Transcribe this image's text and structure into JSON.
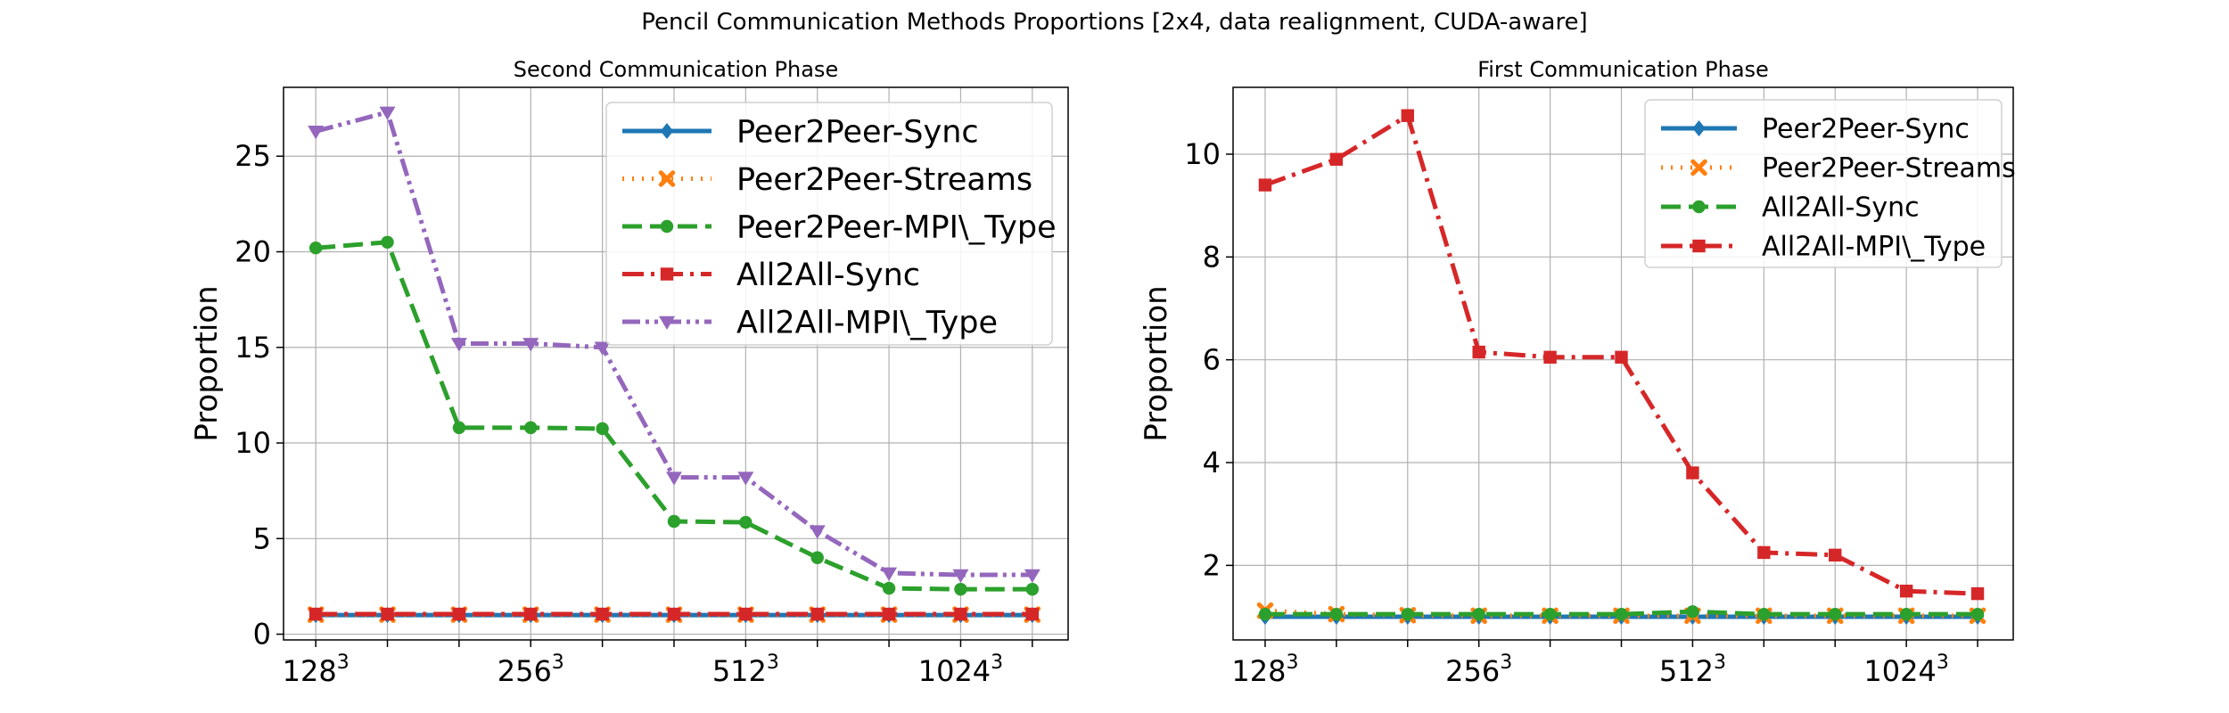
{
  "figure_title": "Pencil Communication Methods Proportions [2x4, data realignment, CUDA-aware]",
  "chart_data": [
    {
      "type": "line",
      "title": "Second Communication Phase",
      "xlabel": "",
      "ylabel": "Proportion",
      "x": [
        1,
        2,
        3,
        4,
        5,
        6,
        7,
        8,
        9,
        10,
        11
      ],
      "xticks": [
        {
          "x": 1,
          "base": "128",
          "exp": "3"
        },
        {
          "x": 4,
          "base": "256",
          "exp": "3"
        },
        {
          "x": 7,
          "base": "512",
          "exp": "3"
        },
        {
          "x": 10,
          "base": "1024",
          "exp": "3"
        }
      ],
      "yticks": [
        0,
        5,
        10,
        15,
        20,
        25
      ],
      "ylim": [
        -0.3,
        28.6
      ],
      "grid": true,
      "legend_position": "top-right",
      "series": [
        {
          "name": "Peer2Peer-Sync",
          "color": "#1f77b4",
          "dash": "solid",
          "marker": "diamond",
          "values": [
            1.0,
            1.0,
            1.0,
            1.0,
            1.0,
            1.0,
            1.0,
            1.0,
            1.0,
            1.0,
            1.0
          ]
        },
        {
          "name": "Peer2Peer-Streams",
          "color": "#ff7f0e",
          "dash": "dotted",
          "marker": "x",
          "values": [
            1.02,
            1.02,
            1.02,
            1.02,
            1.02,
            1.02,
            1.02,
            1.02,
            1.02,
            1.02,
            1.02
          ]
        },
        {
          "name": "Peer2Peer-MPI\\_Type",
          "color": "#2ca02c",
          "dash": "dashed",
          "marker": "circle",
          "values": [
            20.2,
            20.5,
            10.8,
            10.8,
            10.75,
            5.9,
            5.85,
            4.0,
            2.4,
            2.35,
            2.35
          ]
        },
        {
          "name": "All2All-Sync",
          "color": "#d62728",
          "dash": "dashdot",
          "marker": "square",
          "values": [
            1.05,
            1.05,
            1.05,
            1.05,
            1.05,
            1.05,
            1.05,
            1.05,
            1.05,
            1.05,
            1.05
          ]
        },
        {
          "name": "All2All-MPI\\_Type",
          "color": "#9467bd",
          "dash": "dashdotdot",
          "marker": "triangle-down",
          "values": [
            26.3,
            27.3,
            15.2,
            15.2,
            15.0,
            8.2,
            8.2,
            5.4,
            3.2,
            3.1,
            3.1
          ]
        }
      ]
    },
    {
      "type": "line",
      "title": "First Communication Phase",
      "xlabel": "",
      "ylabel": "Proportion",
      "x": [
        1,
        2,
        3,
        4,
        5,
        6,
        7,
        8,
        9,
        10,
        11
      ],
      "xticks": [
        {
          "x": 1,
          "base": "128",
          "exp": "3"
        },
        {
          "x": 4,
          "base": "256",
          "exp": "3"
        },
        {
          "x": 7,
          "base": "512",
          "exp": "3"
        },
        {
          "x": 10,
          "base": "1024",
          "exp": "3"
        }
      ],
      "yticks": [
        2,
        4,
        6,
        8,
        10
      ],
      "ylim": [
        0.55,
        11.3
      ],
      "grid": true,
      "legend_position": "top-right",
      "series": [
        {
          "name": "Peer2Peer-Sync",
          "color": "#1f77b4",
          "dash": "solid",
          "marker": "diamond",
          "values": [
            1.0,
            1.0,
            1.0,
            1.0,
            1.0,
            1.0,
            1.0,
            1.0,
            1.0,
            1.0,
            1.0
          ]
        },
        {
          "name": "Peer2Peer-Streams",
          "color": "#ff7f0e",
          "dash": "dotted",
          "marker": "x",
          "values": [
            1.12,
            1.05,
            1.03,
            1.02,
            1.02,
            1.02,
            1.02,
            1.02,
            1.02,
            1.02,
            1.02
          ]
        },
        {
          "name": "All2All-Sync",
          "color": "#2ca02c",
          "dash": "dashed",
          "marker": "circle",
          "values": [
            1.05,
            1.05,
            1.05,
            1.05,
            1.05,
            1.05,
            1.1,
            1.05,
            1.05,
            1.05,
            1.05
          ]
        },
        {
          "name": "All2All-MPI\\_Type",
          "color": "#d62728",
          "dash": "dashdot",
          "marker": "square",
          "values": [
            9.4,
            9.9,
            10.75,
            6.15,
            6.05,
            6.05,
            3.8,
            2.25,
            2.2,
            1.5,
            1.45
          ]
        }
      ]
    }
  ]
}
